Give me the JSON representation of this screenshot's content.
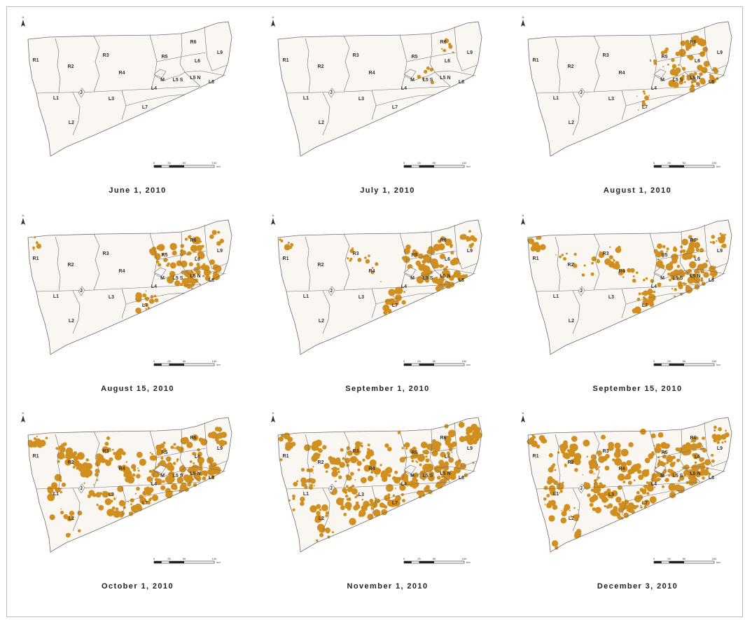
{
  "figure": {
    "panels": [
      {
        "caption": "June 1, 2010",
        "fill_level": 0.0
      },
      {
        "caption": "July 1, 2010",
        "fill_level": 0.05
      },
      {
        "caption": "August 1, 2010",
        "fill_level": 0.25
      },
      {
        "caption": "August 15, 2010",
        "fill_level": 0.35
      },
      {
        "caption": "September 1, 2010",
        "fill_level": 0.45
      },
      {
        "caption": "September 15, 2010",
        "fill_level": 0.55
      },
      {
        "caption": "October 1, 2010",
        "fill_level": 0.8
      },
      {
        "caption": "November 1, 2010",
        "fill_level": 0.92
      },
      {
        "caption": "December 3, 2010",
        "fill_level": 0.94
      }
    ],
    "region_labels": [
      "R1",
      "R2",
      "R3",
      "R4",
      "R5",
      "R6",
      "L1",
      "L2",
      "L3",
      "L4",
      "L5 S",
      "L5 N",
      "L6",
      "L7",
      "L8",
      "L9",
      "M",
      "J"
    ],
    "north_arrow_label": "N",
    "scale_bar": {
      "ticks": [
        "0",
        "25",
        "50",
        "100"
      ],
      "unit": "km"
    }
  },
  "colors": {
    "map_fill": "#faf7f3",
    "boundary": "#6e6e6e",
    "infestation": "#d18f1f",
    "border": "#bdbdbd"
  }
}
